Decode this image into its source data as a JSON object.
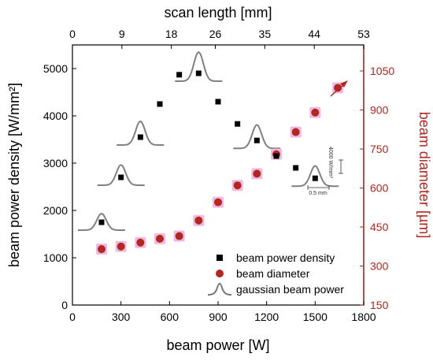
{
  "chart_data": {
    "type": "scatter",
    "x": {
      "label": "beam power [W]",
      "ticks": [
        "0",
        "300",
        "600",
        "900",
        "1200",
        "1500",
        "1800"
      ],
      "range": [
        0,
        1800
      ]
    },
    "x_top": {
      "label": "scan length [mm]",
      "ticks": [
        "0",
        "9",
        "18",
        "26",
        "35",
        "44",
        "53"
      ],
      "range": [
        0,
        53
      ]
    },
    "y_left": {
      "label": "beam power density [W/mm²]",
      "ticks": [
        "0",
        "1000",
        "2000",
        "3000",
        "4000",
        "5000"
      ],
      "range": [
        0,
        5500
      ]
    },
    "y_right": {
      "label": "beam diameter [µm]",
      "ticks": [
        "150",
        "300",
        "450",
        "600",
        "750",
        "900",
        "1050"
      ],
      "range": [
        150,
        1150
      ],
      "color": "#b5261e"
    },
    "series": [
      {
        "name": "beam power density",
        "marker": "square",
        "color": "#000000",
        "axis": "left",
        "x": [
          180,
          300,
          420,
          540,
          660,
          780,
          900,
          1020,
          1140,
          1260,
          1380,
          1500
        ],
        "y": [
          1750,
          2700,
          3550,
          4250,
          4870,
          4900,
          4300,
          3830,
          3480,
          3150,
          2900,
          2680
        ]
      },
      {
        "name": "beam diameter",
        "marker": "circle",
        "color": "#b5261e",
        "highlight": "#f0b8e4",
        "axis": "right",
        "x": [
          180,
          300,
          420,
          540,
          660,
          780,
          900,
          1020,
          1140,
          1260,
          1380,
          1500,
          1640
        ],
        "y": [
          365,
          375,
          390,
          405,
          415,
          475,
          545,
          610,
          655,
          730,
          815,
          890,
          985
        ]
      }
    ],
    "gaussians": [
      {
        "x": 180,
        "amplitude": 1750
      },
      {
        "x": 300,
        "amplitude": 2700
      },
      {
        "x": 420,
        "amplitude": 3550
      },
      {
        "x": 780,
        "amplitude": 4900
      },
      {
        "x": 1140,
        "amplitude": 3480
      },
      {
        "x": 1500,
        "amplitude": 2680
      }
    ],
    "legend": [
      {
        "label": "beam power density",
        "marker": "square"
      },
      {
        "label": "beam diameter",
        "marker": "circle"
      },
      {
        "label": "gaussian beam power",
        "marker": "gaussian"
      }
    ],
    "legend_position": "bottom-right",
    "scale_bar": {
      "vertical": "4000 W/mm²",
      "horizontal": "0.5 mm"
    },
    "grid": false
  }
}
